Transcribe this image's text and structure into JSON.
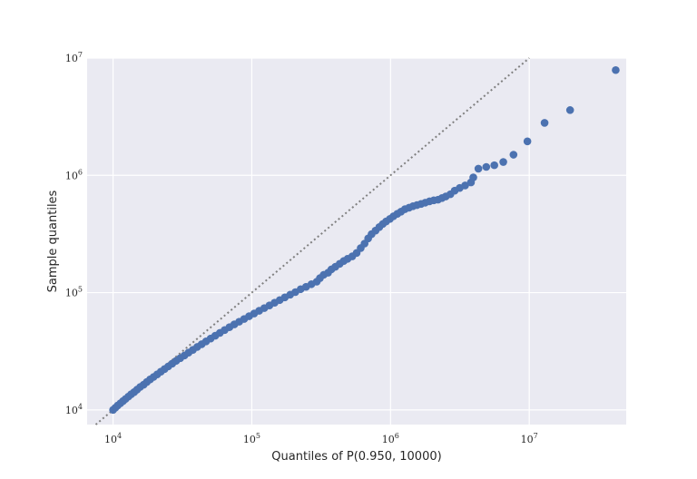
{
  "chart_data": {
    "type": "scatter",
    "title": "",
    "xlabel": "Quantiles of P(0.950, 10000)",
    "ylabel": "Sample quantiles",
    "x_scale": "log",
    "y_scale": "log",
    "xlim": [
      6500,
      50000000
    ],
    "ylim": [
      7500,
      10000000
    ],
    "x_ticks": [
      {
        "value": 10000,
        "base": "10",
        "exp": "4"
      },
      {
        "value": 100000,
        "base": "10",
        "exp": "5"
      },
      {
        "value": 1000000,
        "base": "10",
        "exp": "6"
      },
      {
        "value": 10000000,
        "base": "10",
        "exp": "7"
      }
    ],
    "y_ticks": [
      {
        "value": 10000,
        "base": "10",
        "exp": "4"
      },
      {
        "value": 100000,
        "base": "10",
        "exp": "5"
      },
      {
        "value": 1000000,
        "base": "10",
        "exp": "6"
      },
      {
        "value": 10000000,
        "base": "10",
        "exp": "7"
      }
    ],
    "grid": true,
    "reference_line": {
      "style": "dotted",
      "slope": 1,
      "color": "#808080"
    },
    "marker_color": "#4c72b0",
    "background_color": "#eaeaf2",
    "series": [
      {
        "points": [
          [
            10000,
            10000
          ],
          [
            10400,
            10450
          ],
          [
            10800,
            10900
          ],
          [
            11300,
            11400
          ],
          [
            11800,
            11900
          ],
          [
            12300,
            12400
          ],
          [
            12900,
            13000
          ],
          [
            13500,
            13600
          ],
          [
            14200,
            14200
          ],
          [
            14900,
            14900
          ],
          [
            15700,
            15700
          ],
          [
            16600,
            16400
          ],
          [
            17500,
            17300
          ],
          [
            18500,
            18200
          ],
          [
            19600,
            19100
          ],
          [
            20800,
            20100
          ],
          [
            22100,
            21200
          ],
          [
            23500,
            22300
          ],
          [
            25000,
            23500
          ],
          [
            26700,
            24800
          ],
          [
            28500,
            26200
          ],
          [
            30500,
            27600
          ],
          [
            32700,
            29100
          ],
          [
            35000,
            30800
          ],
          [
            37600,
            32500
          ],
          [
            40400,
            34400
          ],
          [
            43500,
            36300
          ],
          [
            46800,
            38400
          ],
          [
            50500,
            40600
          ],
          [
            54500,
            42900
          ],
          [
            58900,
            45400
          ],
          [
            63700,
            48000
          ],
          [
            69000,
            50700
          ],
          [
            74800,
            53600
          ],
          [
            81100,
            56500
          ],
          [
            88000,
            59600
          ],
          [
            95600,
            62900
          ],
          [
            104000,
            66400
          ],
          [
            113000,
            70000
          ],
          [
            123000,
            73800
          ],
          [
            134000,
            77800
          ],
          [
            146000,
            82000
          ],
          [
            159000,
            86400
          ],
          [
            173000,
            91100
          ],
          [
            189000,
            96000
          ],
          [
            206000,
            101000
          ],
          [
            225000,
            107000
          ],
          [
            246000,
            112000
          ],
          [
            269000,
            118000
          ],
          [
            294000,
            124000
          ],
          [
            310000,
            133000
          ],
          [
            330000,
            142000
          ],
          [
            355000,
            148000
          ],
          [
            375000,
            158000
          ],
          [
            400000,
            166000
          ],
          [
            430000,
            176000
          ],
          [
            460000,
            186000
          ],
          [
            490000,
            194000
          ],
          [
            530000,
            204000
          ],
          [
            570000,
            218000
          ],
          [
            610000,
            240000
          ],
          [
            650000,
            262000
          ],
          [
            690000,
            290000
          ],
          [
            730000,
            315000
          ],
          [
            780000,
            338000
          ],
          [
            830000,
            362000
          ],
          [
            880000,
            385000
          ],
          [
            930000,
            405000
          ],
          [
            990000,
            425000
          ],
          [
            1050000,
            448000
          ],
          [
            1120000,
            470000
          ],
          [
            1190000,
            490000
          ],
          [
            1270000,
            515000
          ],
          [
            1360000,
            530000
          ],
          [
            1450000,
            545000
          ],
          [
            1550000,
            558000
          ],
          [
            1660000,
            570000
          ],
          [
            1780000,
            585000
          ],
          [
            1910000,
            600000
          ],
          [
            2050000,
            612000
          ],
          [
            2200000,
            620000
          ],
          [
            2350000,
            640000
          ],
          [
            2500000,
            660000
          ],
          [
            2700000,
            690000
          ],
          [
            2900000,
            740000
          ],
          [
            3150000,
            780000
          ],
          [
            3450000,
            820000
          ],
          [
            3800000,
            870000
          ],
          [
            3950000,
            960000
          ],
          [
            4300000,
            1140000
          ],
          [
            4900000,
            1180000
          ],
          [
            5600000,
            1220000
          ],
          [
            6500000,
            1300000
          ],
          [
            7700000,
            1500000
          ],
          [
            9700000,
            1950000
          ],
          [
            12900000,
            2800000
          ],
          [
            19700000,
            3600000
          ],
          [
            42000000,
            7900000
          ]
        ]
      }
    ]
  }
}
